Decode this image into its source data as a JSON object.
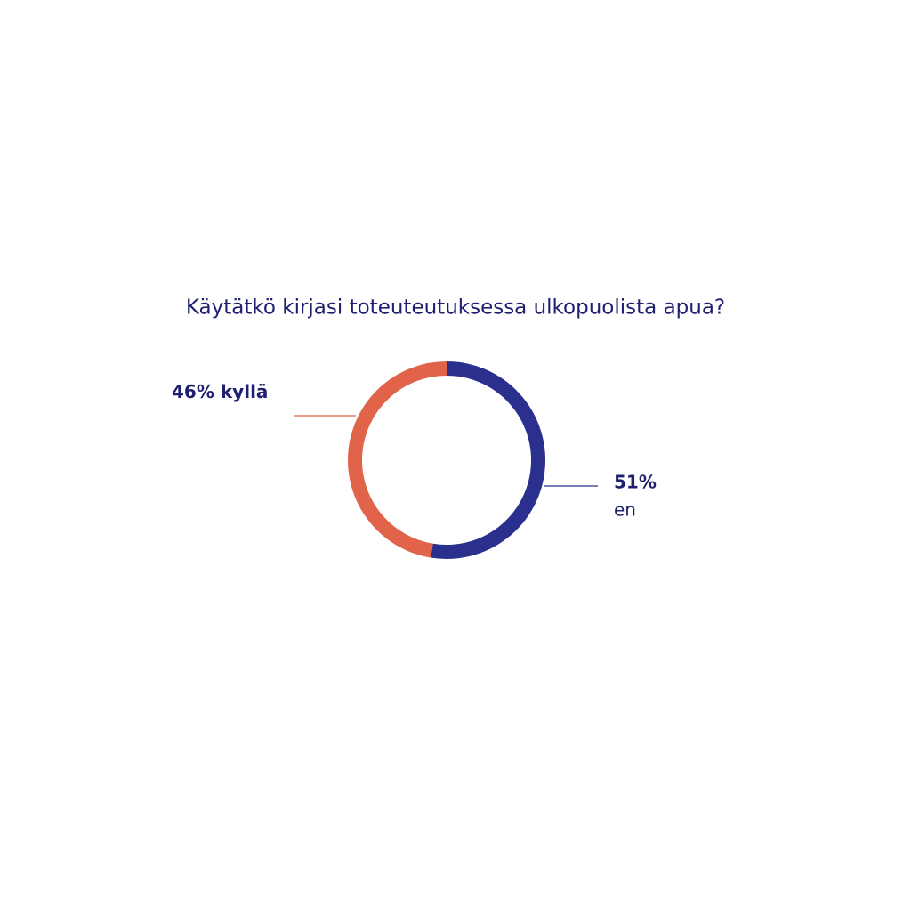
{
  "chart_data": {
    "type": "donut",
    "title": "Käytätkö kirjasi toteuteutuksessa ulkopuolista apua?",
    "categories": [
      "kyllä",
      "en"
    ],
    "values": [
      46,
      51
    ],
    "value_labels": [
      "46%",
      "51%"
    ],
    "colors": [
      "#e0634a",
      "#2b2f8e"
    ]
  }
}
